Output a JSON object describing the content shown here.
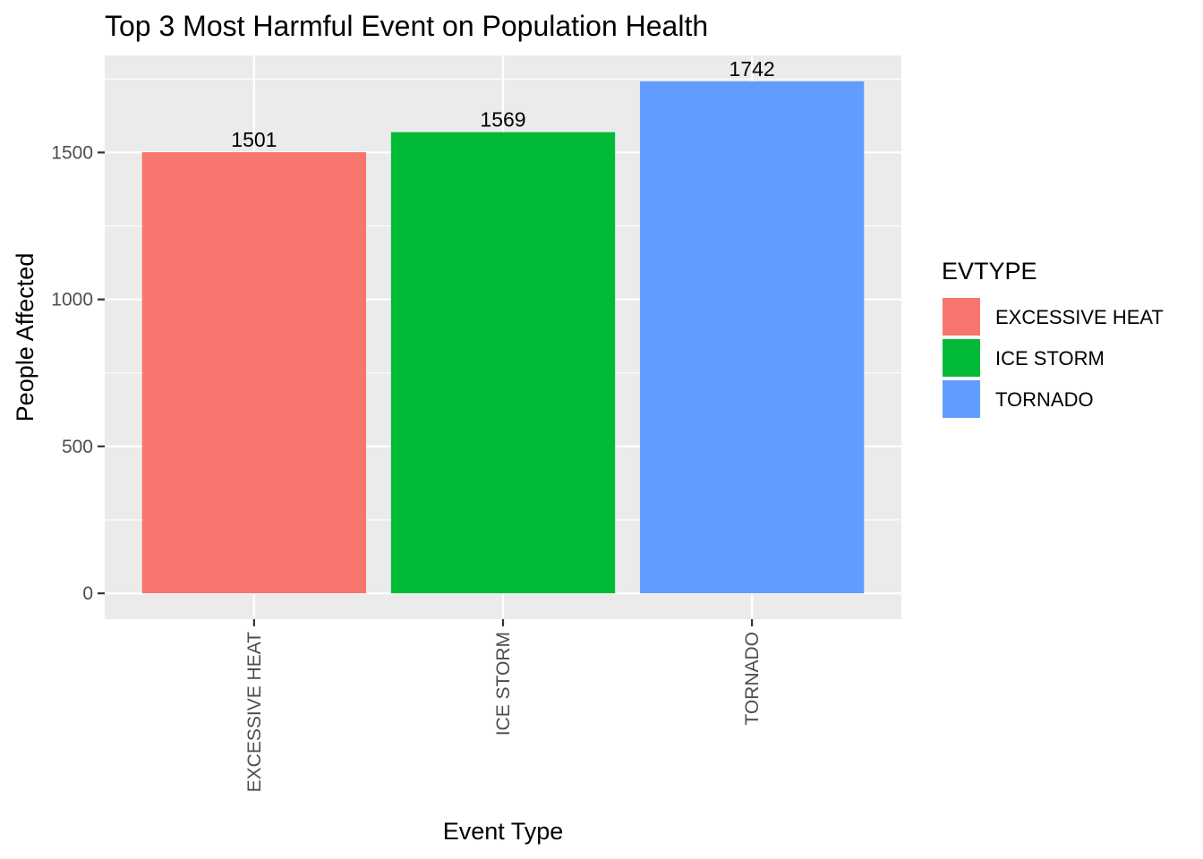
{
  "chart_data": {
    "type": "bar",
    "title": "Top 3 Most Harmful Event on Population Health",
    "xlabel": "Event Type",
    "ylabel": "People Affected",
    "categories": [
      "EXCESSIVE HEAT",
      "ICE STORM",
      "TORNADO"
    ],
    "values": [
      1501,
      1569,
      1742
    ],
    "data_labels": [
      "1501",
      "1569",
      "1742"
    ],
    "colors": [
      "#F8766D",
      "#00BA38",
      "#619CFF"
    ],
    "ylim": [
      -88,
      1830
    ],
    "yticks": [
      0,
      500,
      1000,
      1500
    ],
    "ytick_labels": [
      "0",
      "500",
      "1000",
      "1500"
    ],
    "grid": true,
    "legend": {
      "title": "EVTYPE",
      "position": "right",
      "items": [
        "EXCESSIVE HEAT",
        "ICE STORM",
        "TORNADO"
      ]
    }
  }
}
